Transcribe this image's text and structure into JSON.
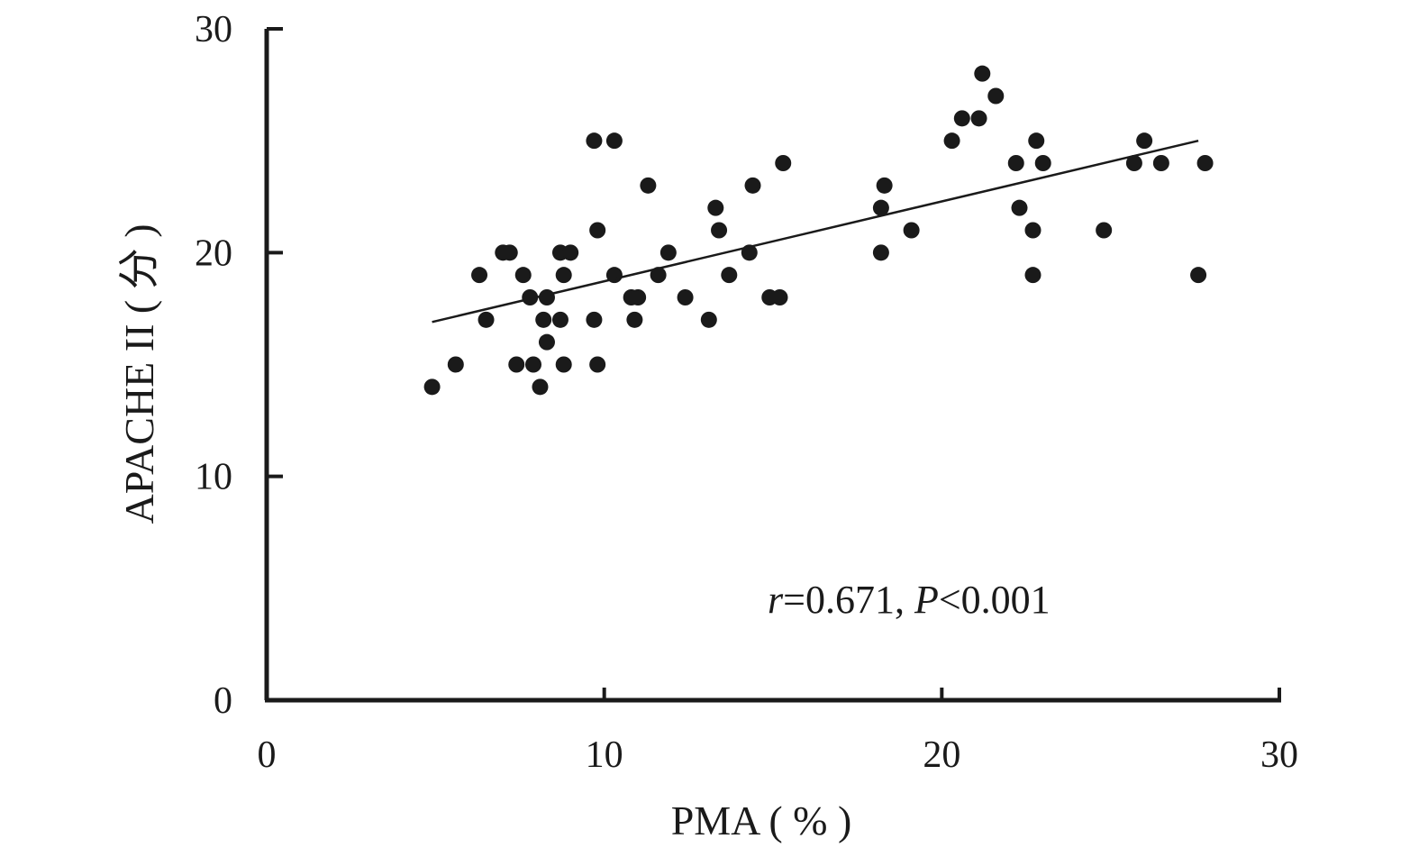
{
  "chart_data": {
    "type": "scatter",
    "title": "",
    "xlabel": "PMA ( % )",
    "ylabel": "APACHE II ( 分 )",
    "xlim": [
      0,
      30
    ],
    "ylim": [
      0,
      30
    ],
    "xticks": [
      "0",
      "10",
      "20",
      "30"
    ],
    "yticks": [
      "0",
      "10",
      "20",
      "30"
    ],
    "grid": false,
    "annotation": {
      "r_symbol": "r",
      "r_text": "=0.671, ",
      "p_symbol": "P",
      "p_text": "<0.001"
    },
    "trendline": {
      "x": [
        4.9,
        27.6
      ],
      "y": [
        16.9,
        25.0
      ]
    },
    "points": [
      [
        4.9,
        14
      ],
      [
        5.6,
        15
      ],
      [
        6.3,
        19
      ],
      [
        6.5,
        17
      ],
      [
        7.0,
        20
      ],
      [
        7.2,
        20
      ],
      [
        7.4,
        15
      ],
      [
        7.6,
        19
      ],
      [
        7.8,
        18
      ],
      [
        7.9,
        15
      ],
      [
        8.1,
        14
      ],
      [
        8.2,
        17
      ],
      [
        8.3,
        18
      ],
      [
        8.3,
        16
      ],
      [
        8.7,
        20
      ],
      [
        8.7,
        17
      ],
      [
        8.8,
        19
      ],
      [
        8.8,
        15
      ],
      [
        9.0,
        20
      ],
      [
        9.7,
        25
      ],
      [
        9.7,
        17
      ],
      [
        9.8,
        21
      ],
      [
        9.8,
        15
      ],
      [
        10.3,
        25
      ],
      [
        10.3,
        19
      ],
      [
        10.8,
        18
      ],
      [
        10.9,
        17
      ],
      [
        11.0,
        18
      ],
      [
        11.3,
        23
      ],
      [
        11.6,
        19
      ],
      [
        11.9,
        20
      ],
      [
        12.4,
        18
      ],
      [
        13.1,
        17
      ],
      [
        13.3,
        22
      ],
      [
        13.4,
        21
      ],
      [
        13.7,
        19
      ],
      [
        14.3,
        20
      ],
      [
        14.4,
        23
      ],
      [
        14.9,
        18
      ],
      [
        15.2,
        18
      ],
      [
        15.3,
        24
      ],
      [
        18.2,
        22
      ],
      [
        18.2,
        20
      ],
      [
        18.3,
        23
      ],
      [
        19.1,
        21
      ],
      [
        20.3,
        25
      ],
      [
        20.6,
        26
      ],
      [
        21.1,
        26
      ],
      [
        21.2,
        28
      ],
      [
        21.6,
        27
      ],
      [
        22.2,
        24
      ],
      [
        22.3,
        22
      ],
      [
        22.7,
        21
      ],
      [
        22.7,
        19
      ],
      [
        22.8,
        25
      ],
      [
        23.0,
        24
      ],
      [
        24.8,
        21
      ],
      [
        25.7,
        24
      ],
      [
        26.0,
        25
      ],
      [
        26.5,
        24
      ],
      [
        27.6,
        19
      ],
      [
        27.8,
        24
      ]
    ],
    "marker_color": "#1a1a1a",
    "line_color": "#1a1a1a"
  }
}
